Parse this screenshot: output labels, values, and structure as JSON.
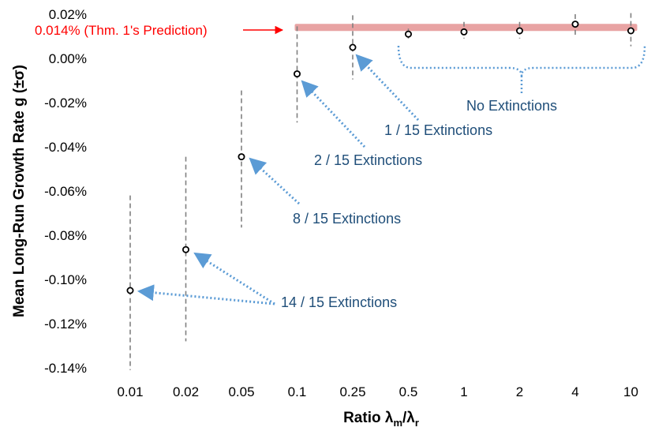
{
  "chart_data": {
    "type": "scatter",
    "categories": [
      "0.01",
      "0.02",
      "0.05",
      "0.1",
      "0.25",
      "0.5",
      "1",
      "2",
      "4",
      "10"
    ],
    "values": [
      -0.105,
      -0.0865,
      -0.0445,
      -0.007,
      0.005,
      0.011,
      0.012,
      0.0125,
      0.0155,
      0.0125
    ],
    "error_low": [
      -0.141,
      -0.128,
      -0.0765,
      -0.029,
      -0.0095,
      0.009,
      0.009,
      0.009,
      0.0105,
      0.0055
    ],
    "error_high": [
      -0.062,
      -0.0445,
      -0.0145,
      0.0145,
      0.0195,
      0.0135,
      0.0165,
      0.0165,
      0.02,
      0.0205
    ],
    "ylim": [
      -0.14,
      0.02
    ],
    "yticks": [
      "0.02%",
      "0.00%",
      "-0.02%",
      "-0.04%",
      "-0.06%",
      "-0.08%",
      "-0.10%",
      "-0.12%",
      "-0.14%"
    ],
    "ytick_values": [
      0.02,
      0.0,
      -0.02,
      -0.04,
      -0.06,
      -0.08,
      -0.1,
      -0.12,
      -0.14
    ],
    "ylabel": "Mean Long-Run Growth Rate g (±σ)",
    "xlabel_main": "Ratio λ",
    "xlabel_sub1": "m",
    "xlabel_slash": "/λ",
    "xlabel_sub2": "r",
    "grid": false,
    "prediction": {
      "value": 0.014,
      "label": "0.014% (Thm. 1's Prediction)",
      "from_category": "0.1",
      "to_category": "10",
      "color": "#ff0000",
      "band_color": "#e8a3a3"
    },
    "annotations": [
      {
        "text": "No Extinctions"
      },
      {
        "text": "1 / 15 Extinctions"
      },
      {
        "text": "2 / 15 Extinctions"
      },
      {
        "text": "8 / 15 Extinctions"
      },
      {
        "text": "14 / 15 Extinctions"
      }
    ],
    "colors": {
      "annotation_text": "#1f4e79",
      "arrow": "#5b9bd5",
      "error_bar": "#808080",
      "marker": "#000000"
    }
  }
}
